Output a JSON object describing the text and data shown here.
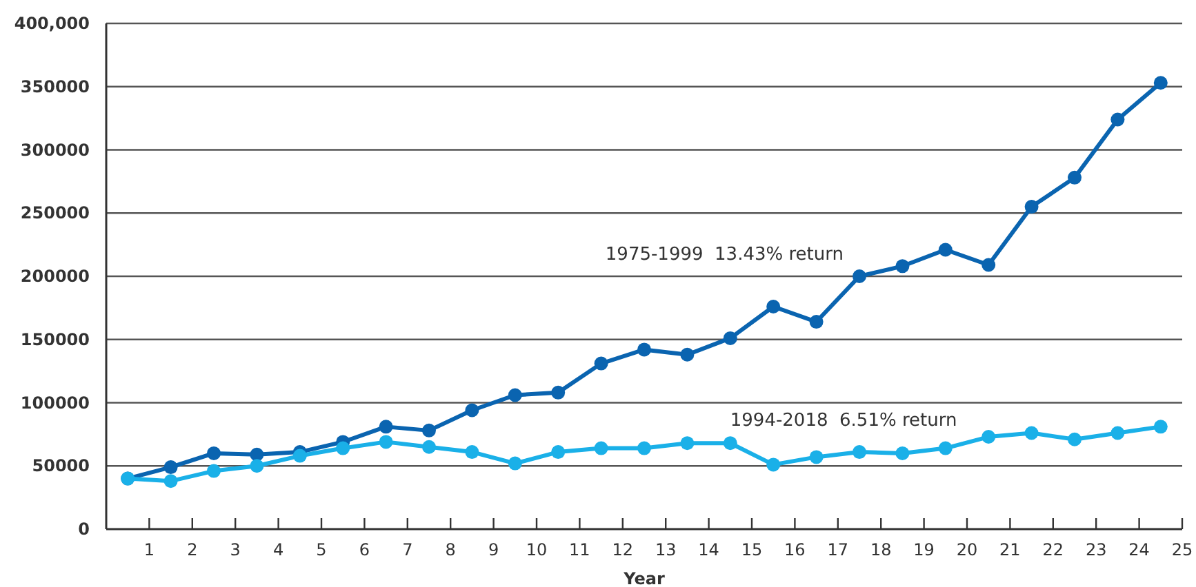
{
  "chart_data": {
    "type": "line",
    "xlabel": "Year",
    "x": [
      0.5,
      1.5,
      2.5,
      3.5,
      4.5,
      5.5,
      6.5,
      7.5,
      8.5,
      9.5,
      10.5,
      11.5,
      12.5,
      13.5,
      14.5,
      15.5,
      16.5,
      17.5,
      18.5,
      19.5,
      20.5,
      21.5,
      22.5,
      23.5,
      24.5
    ],
    "series": [
      {
        "name": "1975-1999  13.43% return",
        "color": "#0a64b0",
        "values": [
          40000,
          49000,
          60000,
          59000,
          61000,
          69000,
          81000,
          78000,
          94000,
          106000,
          108000,
          131000,
          142000,
          138000,
          151000,
          176000,
          164000,
          200000,
          208000,
          221000,
          209000,
          255000,
          278000,
          324000,
          353000
        ]
      },
      {
        "name": "1994-2018  6.51% return",
        "color": "#1ab0e8",
        "values": [
          40000,
          38000,
          46000,
          50000,
          58000,
          64000,
          69000,
          65000,
          61000,
          52000,
          61000,
          64000,
          64000,
          68000,
          68000,
          51000,
          57000,
          61000,
          60000,
          64000,
          73000,
          76000,
          71000,
          76000,
          81000
        ]
      }
    ],
    "xlim": [
      0,
      25
    ],
    "xticks": [
      1,
      2,
      3,
      4,
      5,
      6,
      7,
      8,
      9,
      10,
      11,
      12,
      13,
      14,
      15,
      16,
      17,
      18,
      19,
      20,
      21,
      22,
      23,
      24,
      25
    ],
    "ylim": [
      0,
      400000
    ],
    "yticks": [
      0,
      50000,
      100000,
      150000,
      200000,
      250000,
      300000,
      350000,
      {
        "value": 400000,
        "label": "400,000"
      }
    ],
    "grid": "y",
    "marker": "circle",
    "line_style": "solid"
  }
}
